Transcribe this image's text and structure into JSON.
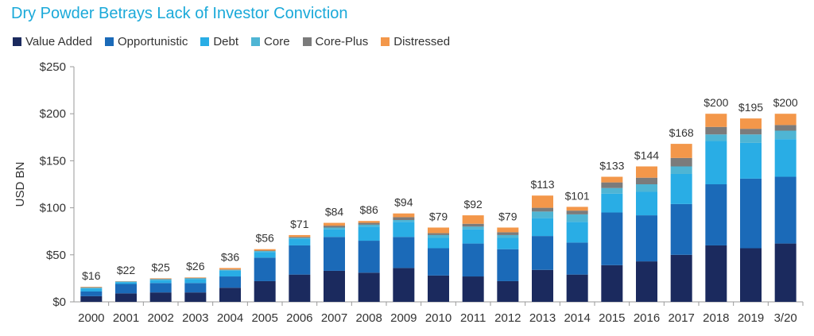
{
  "chart_data": {
    "type": "bar",
    "stacked": true,
    "title": "Dry Powder Betrays Lack of Investor Conviction",
    "xlabel": "",
    "ylabel": "USD BN",
    "ylim": [
      0,
      250
    ],
    "yticks": [
      0,
      50,
      100,
      150,
      200,
      250
    ],
    "ytick_labels": [
      "$0",
      "$50",
      "$100",
      "$150",
      "$200",
      "$250"
    ],
    "grid": false,
    "legend": "top-left",
    "categories": [
      "2000",
      "2001",
      "2002",
      "2003",
      "2004",
      "2005",
      "2006",
      "2007",
      "2008",
      "2009",
      "2010",
      "2011",
      "2012",
      "2013",
      "2014",
      "2015",
      "2016",
      "2017",
      "2018",
      "2019",
      "3/20"
    ],
    "totals_labels": [
      "$16",
      "$22",
      "$25",
      "$26",
      "$36",
      "$56",
      "$71",
      "$84",
      "$86",
      "$94",
      "$79",
      "$92",
      "$79",
      "$113",
      "$101",
      "$133",
      "$144",
      "$168",
      "$200",
      "$195",
      "$200"
    ],
    "totals": [
      16,
      22,
      25,
      26,
      36,
      56,
      71,
      84,
      86,
      94,
      79,
      92,
      79,
      113,
      101,
      133,
      144,
      168,
      200,
      195,
      200
    ],
    "series": [
      {
        "name": "Value Added",
        "color": "#1b2a5e",
        "values": [
          6,
          9,
          10,
          10,
          15,
          22,
          29,
          33,
          31,
          36,
          28,
          27,
          22,
          34,
          29,
          39,
          43,
          50,
          60,
          57,
          62
        ]
      },
      {
        "name": "Opportunistic",
        "color": "#1b6ab8",
        "values": [
          5,
          10,
          10,
          10,
          12,
          25,
          31,
          36,
          34,
          33,
          29,
          35,
          34,
          36,
          34,
          56,
          49,
          54,
          65,
          74,
          71
        ]
      },
      {
        "name": "Debt",
        "color": "#29ade5",
        "values": [
          3,
          2,
          3,
          4,
          6,
          6,
          7,
          8,
          15,
          16,
          11,
          15,
          12,
          19,
          22,
          20,
          25,
          32,
          46,
          38,
          40
        ]
      },
      {
        "name": "Core",
        "color": "#4fb5d4",
        "values": [
          1,
          0.5,
          1,
          1,
          1,
          1,
          1,
          2,
          2,
          2,
          3,
          3,
          3,
          7,
          8,
          6,
          8,
          8,
          7,
          9,
          9
        ]
      },
      {
        "name": "Core-Plus",
        "color": "#7b7b7b",
        "values": [
          0.5,
          0.3,
          0.5,
          0.5,
          0.5,
          0.5,
          1,
          2,
          2,
          3,
          2,
          3,
          3,
          4,
          4,
          6,
          7,
          9,
          8,
          6,
          6
        ]
      },
      {
        "name": "Distressed",
        "color": "#f3974a",
        "values": [
          0.5,
          0.2,
          0.5,
          0.5,
          1.5,
          1.5,
          2,
          3,
          2,
          4,
          6,
          9,
          5,
          13,
          4,
          6,
          12,
          15,
          14,
          11,
          12
        ]
      }
    ]
  }
}
